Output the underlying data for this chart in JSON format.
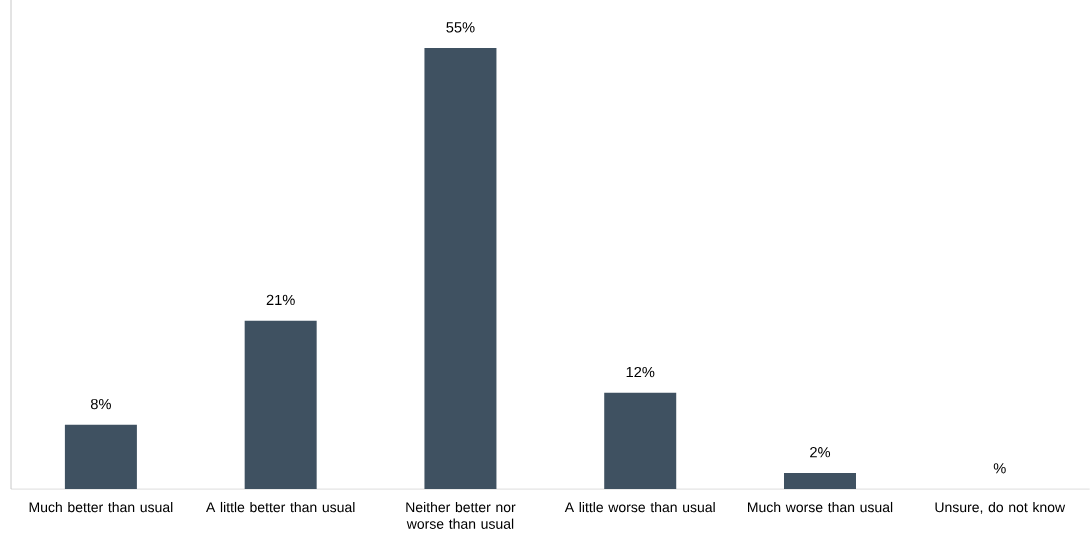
{
  "chart_data": {
    "type": "bar",
    "categories": [
      "Much better than usual",
      "A little better than usual",
      "Neither better nor worse than usual",
      "A little worse than usual",
      "Much worse than usual",
      "Unsure, do not know"
    ],
    "values": [
      8,
      21,
      55,
      12,
      2,
      null
    ],
    "value_labels": [
      "8%",
      "21%",
      "55%",
      "12%",
      "2%",
      "%"
    ],
    "color": "#3f5161",
    "ylim": [
      0,
      61
    ]
  }
}
